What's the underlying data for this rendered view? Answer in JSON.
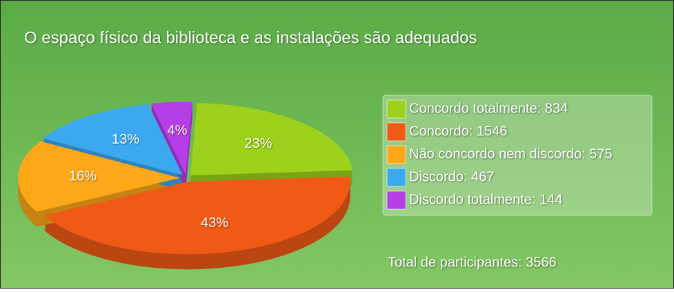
{
  "chart_data": {
    "type": "pie",
    "title": "O espaço físico da biblioteca e as instalações são adequados",
    "categories": [
      "Concordo totalmente",
      "Concordo",
      "Não concordo nem discordo",
      "Discordo",
      "Discordo totalmente"
    ],
    "values": [
      23,
      43,
      16,
      13,
      4
    ],
    "value_labels": [
      "23%",
      "43%",
      "16%",
      "13%",
      "4%"
    ],
    "legend_labels": [
      "Concordo totalmente: 834",
      "Concordo: 1546",
      "Não concordo nem discordo: 575",
      "Discordo: 467",
      "Discordo totalmente: 144"
    ],
    "colors": [
      "#9ed11c",
      "#f05a16",
      "#fca818",
      "#3ca8f0",
      "#b63ee6"
    ],
    "annotation": "Total de participantes: 3566",
    "legend": "right"
  }
}
